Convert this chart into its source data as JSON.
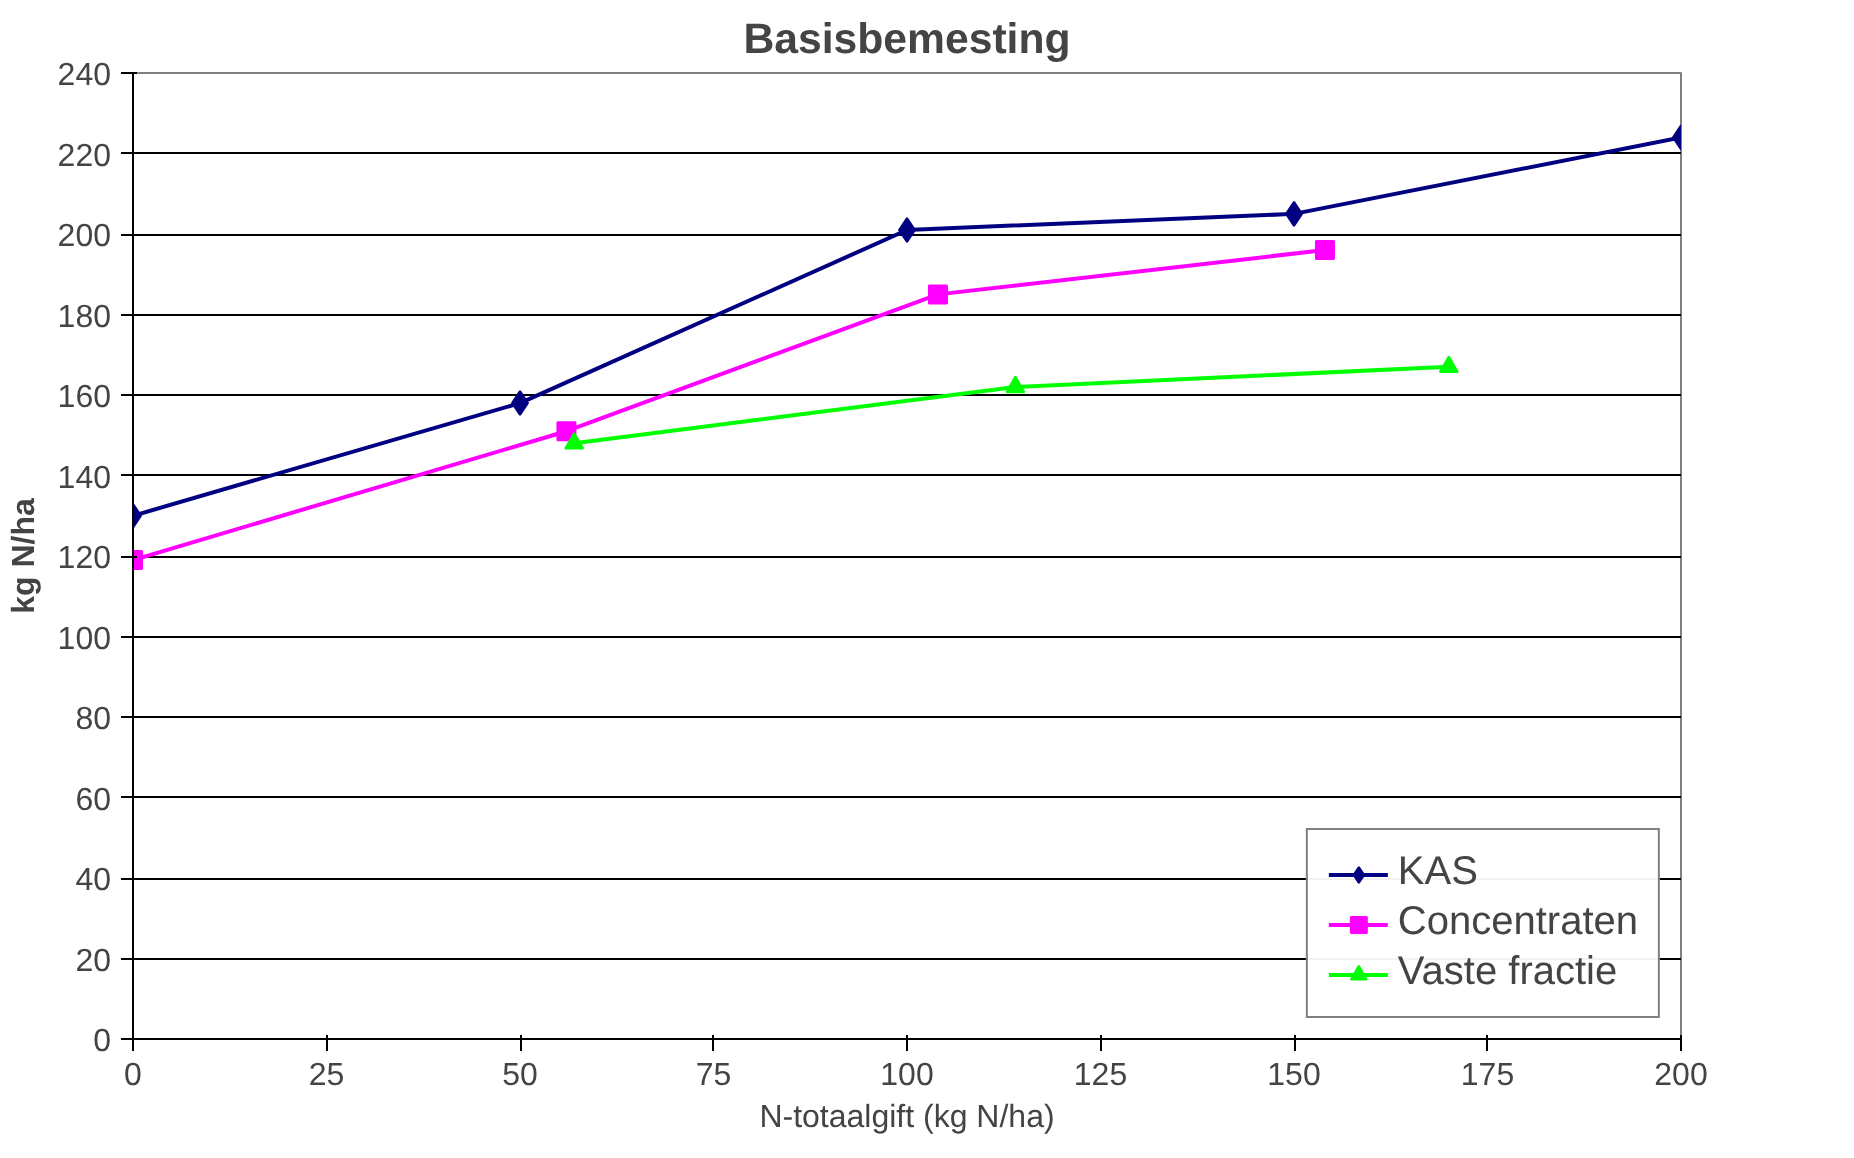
{
  "chart_data": {
    "type": "line",
    "title": "Basisbemesting",
    "xlabel": "N-totaalgift (kg N/ha)",
    "ylabel": "kg N/ha",
    "xlim": [
      0,
      200
    ],
    "xticks": [
      0,
      25,
      50,
      75,
      100,
      125,
      150,
      175,
      200
    ],
    "ylim": [
      0,
      240
    ],
    "yticks": [
      0,
      20,
      40,
      60,
      80,
      100,
      120,
      140,
      160,
      180,
      200,
      220,
      240
    ],
    "grid": "y",
    "legend": "bottom right",
    "series": [
      {
        "name": "KAS",
        "color": "#000080",
        "marker": "diamond",
        "x": [
          0,
          50,
          100,
          150,
          200
        ],
        "values": [
          130,
          158,
          201,
          205,
          224
        ]
      },
      {
        "name": "Concentraten",
        "color": "#ff00ff",
        "marker": "square",
        "x": [
          0,
          56,
          104,
          154
        ],
        "values": [
          119,
          151,
          185,
          196
        ]
      },
      {
        "name": "Vaste fractie",
        "color": "#00ff00",
        "marker": "triangle",
        "x": [
          57,
          114,
          170
        ],
        "values": [
          148,
          162,
          167
        ]
      }
    ]
  }
}
